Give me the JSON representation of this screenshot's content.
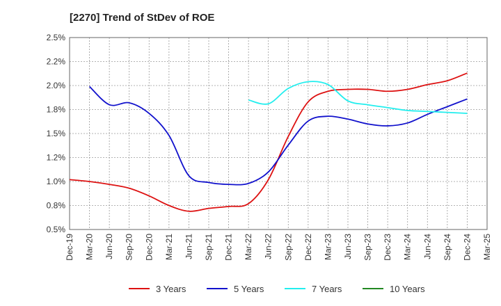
{
  "chart_data": {
    "type": "line",
    "title": "[2270]  Trend of StDev of ROE",
    "xlabel": "",
    "ylabel": "",
    "ylim": [
      0.5,
      2.5
    ],
    "y_ticks": [
      "0.5%",
      "0.8%",
      "1.0%",
      "1.2%",
      "1.5%",
      "1.8%",
      "2.0%",
      "2.2%",
      "2.5%"
    ],
    "x_ticks": [
      "Dec-19",
      "Mar-20",
      "Jun-20",
      "Sep-20",
      "Dec-20",
      "Mar-21",
      "Jun-21",
      "Sep-21",
      "Dec-21",
      "Mar-22",
      "Jun-22",
      "Sep-22",
      "Dec-22",
      "Mar-23",
      "Jun-23",
      "Sep-23",
      "Dec-23",
      "Mar-24",
      "Jun-24",
      "Sep-24",
      "Dec-24",
      "Mar-25"
    ],
    "grid": true,
    "legend_position": "bottom",
    "series": [
      {
        "name": "3 Years",
        "color": "#dd1111",
        "points": [
          [
            "Dec-19",
            1.02
          ],
          [
            "Mar-20",
            1.0
          ],
          [
            "Jun-20",
            0.97
          ],
          [
            "Sep-20",
            0.93
          ],
          [
            "Dec-20",
            0.85
          ],
          [
            "Mar-21",
            0.75
          ],
          [
            "Jun-21",
            0.69
          ],
          [
            "Sep-21",
            0.72
          ],
          [
            "Dec-21",
            0.74
          ],
          [
            "Mar-22",
            0.77
          ],
          [
            "Jun-22",
            1.02
          ],
          [
            "Sep-22",
            1.47
          ],
          [
            "Dec-22",
            1.83
          ],
          [
            "Mar-23",
            1.94
          ],
          [
            "Jun-23",
            1.96
          ],
          [
            "Sep-23",
            1.96
          ],
          [
            "Dec-23",
            1.94
          ],
          [
            "Mar-24",
            1.96
          ],
          [
            "Jun-24",
            2.01
          ],
          [
            "Sep-24",
            2.05
          ],
          [
            "Dec-24",
            2.13
          ]
        ]
      },
      {
        "name": "5 Years",
        "color": "#1111cc",
        "points": [
          [
            "Mar-20",
            1.99
          ],
          [
            "Jun-20",
            1.8
          ],
          [
            "Sep-20",
            1.82
          ],
          [
            "Dec-20",
            1.71
          ],
          [
            "Mar-21",
            1.48
          ],
          [
            "Jun-21",
            1.06
          ],
          [
            "Sep-21",
            0.99
          ],
          [
            "Dec-21",
            0.97
          ],
          [
            "Mar-22",
            0.98
          ],
          [
            "Jun-22",
            1.1
          ],
          [
            "Sep-22",
            1.38
          ],
          [
            "Dec-22",
            1.63
          ],
          [
            "Mar-23",
            1.68
          ],
          [
            "Jun-23",
            1.65
          ],
          [
            "Sep-23",
            1.6
          ],
          [
            "Dec-23",
            1.58
          ],
          [
            "Mar-24",
            1.61
          ],
          [
            "Jun-24",
            1.7
          ],
          [
            "Sep-24",
            1.78
          ],
          [
            "Dec-24",
            1.86
          ]
        ]
      },
      {
        "name": "7 Years",
        "color": "#22eeee",
        "points": [
          [
            "Mar-22",
            1.85
          ],
          [
            "Jun-22",
            1.81
          ],
          [
            "Sep-22",
            1.97
          ],
          [
            "Dec-22",
            2.04
          ],
          [
            "Mar-23",
            2.01
          ],
          [
            "Jun-23",
            1.84
          ],
          [
            "Sep-23",
            1.8
          ],
          [
            "Dec-23",
            1.77
          ],
          [
            "Mar-24",
            1.74
          ],
          [
            "Jun-24",
            1.73
          ],
          [
            "Sep-24",
            1.72
          ],
          [
            "Dec-24",
            1.71
          ]
        ]
      },
      {
        "name": "10 Years",
        "color": "#228822",
        "points": []
      }
    ]
  }
}
